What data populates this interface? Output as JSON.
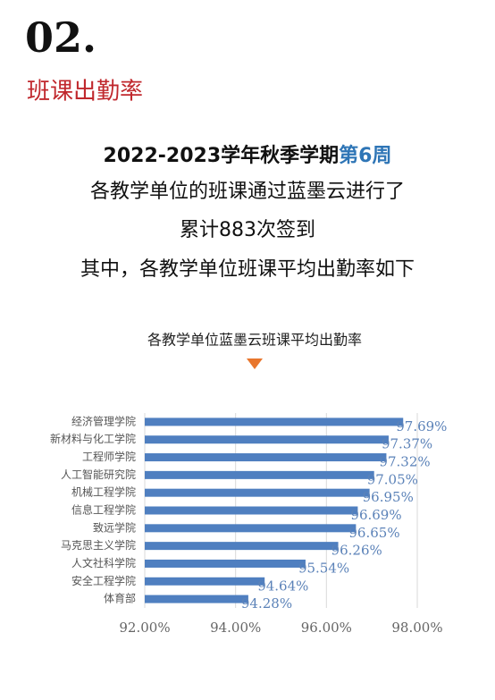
{
  "header": {
    "number": "02.",
    "title": "班课出勤率"
  },
  "intro": {
    "line1": "2022-2023学年秋季学期",
    "line1_highlight": "第6周",
    "line2": "各教学单位的班课通过蓝墨云进行了",
    "line3": "累计883次签到",
    "line4": "其中，各教学单位班课平均出勤率如下"
  },
  "chart_data": {
    "type": "hbar",
    "title": "各教学单位蓝墨云班课平均出勤率",
    "categories": [
      "经济管理学院",
      "新材料与化工学院",
      "工程师学院",
      "人工智能研究院",
      "机械工程学院",
      "信息工程学院",
      "致远学院",
      "马克思主义学院",
      "人文社科学院",
      "安全工程学院",
      "体育部"
    ],
    "values": [
      97.69,
      97.37,
      97.32,
      97.05,
      96.95,
      96.69,
      96.65,
      96.26,
      95.54,
      94.64,
      94.28
    ],
    "value_labels": [
      "97.69%",
      "97.37%",
      "97.32%",
      "97.05%",
      "96.95%",
      "96.69%",
      "96.65%",
      "96.26%",
      "95.54%",
      "94.64%",
      "94.28%"
    ],
    "color": "#4f7fc0",
    "label_color": "#5b82b8",
    "xlim": [
      92,
      98
    ],
    "xticks": [
      {
        "value": 92,
        "label": "92.00%"
      },
      {
        "value": 94,
        "label": "94.00%"
      },
      {
        "value": 96,
        "label": "96.00%"
      },
      {
        "value": 98,
        "label": "98.00%"
      }
    ],
    "grid": true
  }
}
